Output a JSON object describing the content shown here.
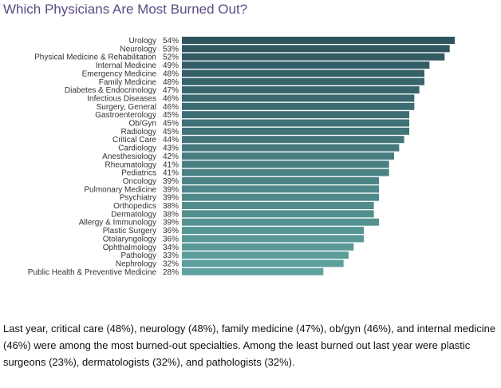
{
  "chart_data": {
    "type": "bar",
    "orientation": "horizontal",
    "title": "Which Physicians Are Most Burned Out?",
    "categories": [
      "Urology",
      "Neurology",
      "Physical Medicine & Rehabilitation",
      "Internal Medicine",
      "Emergency Medicine",
      "Family Medicine",
      "Diabetes & Endocrinology",
      "Infectious Diseases",
      "Surgery, General",
      "Gastroenterology",
      "Ob/Gyn",
      "Radiology",
      "Critical Care",
      "Cardiology",
      "Anesthesiology",
      "Rheumatology",
      "Pediatrics",
      "Oncology",
      "Pulmonary Medicine",
      "Psychiatry",
      "Orthopedics",
      "Dermatology",
      "Allergy & Immunology",
      "Plastic Surgery",
      "Otolaryngology",
      "Ophthalmology",
      "Pathology",
      "Nephrology",
      "Public Health & Preventive Medicine"
    ],
    "values": [
      54,
      53,
      52,
      49,
      48,
      48,
      47,
      46,
      46,
      45,
      45,
      45,
      44,
      43,
      42,
      41,
      41,
      39,
      39,
      39,
      38,
      38,
      39,
      36,
      36,
      34,
      33,
      32,
      28
    ],
    "value_suffix": "%",
    "xlim": [
      0,
      54
    ],
    "grid": false,
    "legend": false,
    "color_top": "#2e555f",
    "color_bottom": "#5fa3a0"
  },
  "caption": "Last year, critical care (48%), neurology (48%), family medicine (47%), ob/gyn (46%), and internal medicine (46%) were among the most burned-out specialties. Among the least burned out last year were plastic surgeons (23%), dermatologists (32%), and pathologists (32%)."
}
